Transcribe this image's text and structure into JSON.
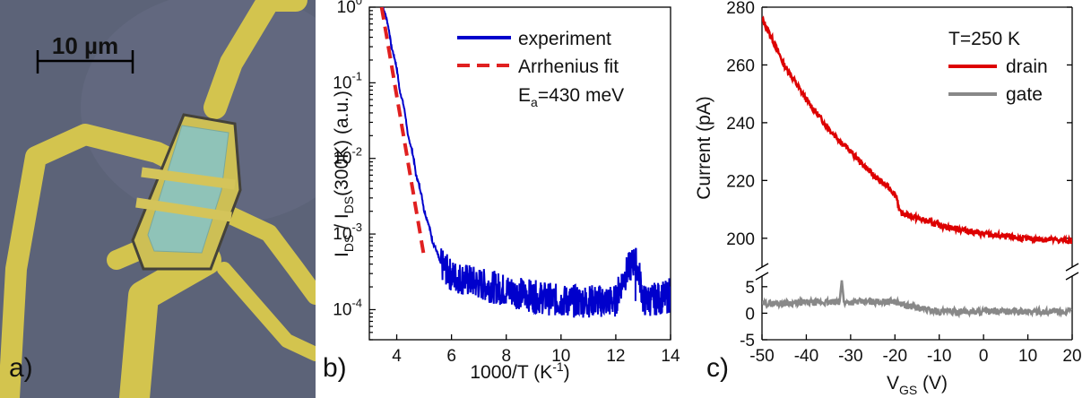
{
  "panels": {
    "a": {
      "label": "a)",
      "scalebar_label": "10 µm"
    },
    "b": {
      "label": "b)"
    },
    "c": {
      "label": "c)"
    }
  },
  "chart_data": [
    {
      "type": "line",
      "panel": "b",
      "xlabel": "1000/T (K⁻¹)",
      "ylabel": "IDS / IDS(300K) (a.u.)",
      "xlim": [
        3,
        14
      ],
      "ylim": [
        4e-05,
        1
      ],
      "yscale": "log",
      "xticks": [
        4,
        6,
        8,
        10,
        12,
        14
      ],
      "xtick_labels": [
        "4",
        "6",
        "8",
        "10",
        "12",
        "14"
      ],
      "yticks": [
        1,
        0.1,
        0.01,
        0.001,
        0.0001
      ],
      "ytick_labels": [
        {
          "base": "10",
          "exp": "0"
        },
        {
          "base": "10",
          "exp": "-1"
        },
        {
          "base": "10",
          "exp": "-2"
        },
        {
          "base": "10",
          "exp": "-3"
        },
        {
          "base": "10",
          "exp": "-4"
        }
      ],
      "legend_position": "top-right",
      "annotation": "Ea=430 meV",
      "series": [
        {
          "name": "experiment",
          "color": "#0000cc",
          "style": "solid-noisy",
          "x": [
            3.5,
            3.8,
            4.1,
            4.4,
            4.7,
            5.0,
            5.3,
            5.6,
            6.0,
            7.0,
            8.0,
            9.0,
            10.0,
            11.0,
            12.0,
            12.7,
            13.0,
            14.0
          ],
          "y": [
            1.0,
            0.3,
            0.08,
            0.02,
            0.006,
            0.002,
            0.0008,
            0.0004,
            0.00028,
            0.00022,
            0.00018,
            0.00015,
            0.00013,
            0.00013,
            0.00013,
            0.00045,
            0.00013,
            0.00015
          ]
        },
        {
          "name": "Arrhenius fit",
          "color": "#e02020",
          "style": "dashed",
          "x": [
            3.45,
            5.0
          ],
          "y": [
            1.0,
            0.0005
          ]
        }
      ]
    },
    {
      "type": "line",
      "panel": "c",
      "xlabel": "VGS (V)",
      "ylabel": "Current (pA)",
      "xlim": [
        -50,
        20
      ],
      "broken_axis": true,
      "upper_ylim": [
        190,
        280
      ],
      "lower_ylim": [
        -5,
        7
      ],
      "xticks": [
        -50,
        -40,
        -30,
        -20,
        -10,
        0,
        10,
        20
      ],
      "xtick_labels": [
        "-50",
        "-40",
        "-30",
        "-20",
        "-10",
        "0",
        "10",
        "20"
      ],
      "upper_yticks": [
        200,
        220,
        240,
        260,
        280
      ],
      "upper_ytick_labels": [
        "200",
        "220",
        "240",
        "260",
        "280"
      ],
      "lower_yticks": [
        -5,
        0,
        5
      ],
      "lower_ytick_labels": [
        "-5",
        "0",
        "5"
      ],
      "legend_title": "T=250 K",
      "legend_position": "top-right",
      "series": [
        {
          "name": "drain",
          "color": "#dd0000",
          "x": [
            -50,
            -48,
            -45,
            -40,
            -35,
            -30,
            -25,
            -21,
            -19.5,
            -19,
            -15,
            -10,
            -5,
            0,
            5,
            10,
            15,
            20
          ],
          "y": [
            276,
            270,
            260,
            248,
            238,
            230,
            222,
            217,
            214,
            209,
            207,
            204.5,
            203,
            201.5,
            200.5,
            199.8,
            199.5,
            199
          ]
        },
        {
          "name": "gate",
          "color": "#888888",
          "x": [
            -50,
            -40,
            -32.5,
            -32,
            -31.5,
            -30,
            -20,
            -18,
            -12,
            -10,
            0,
            10,
            20
          ],
          "y": [
            1.8,
            2.0,
            2.1,
            6.2,
            2.0,
            2.1,
            2.2,
            1.5,
            0.6,
            0.3,
            0.3,
            0.3,
            0.3
          ]
        }
      ]
    }
  ]
}
